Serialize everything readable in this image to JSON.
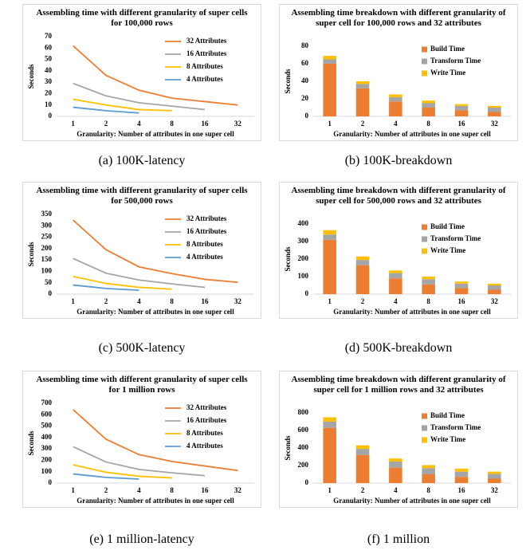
{
  "chart_data": [
    {
      "type": "line",
      "title": "Assembling time with different granularity of super cells for 100,000 rows",
      "caption": "(a)  100K-latency",
      "ylabel": "Seconds",
      "xlabel": "Granularity: Number of attributes in one super cell",
      "categories": [
        "1",
        "2",
        "4",
        "8",
        "16",
        "32"
      ],
      "ylim": [
        0,
        70
      ],
      "yticks": [
        0,
        10,
        20,
        30,
        40,
        50,
        60,
        70
      ],
      "series": [
        {
          "name": "32 Attributes",
          "color": "#ED7D31",
          "values": [
            62,
            36,
            23,
            16,
            13,
            10
          ]
        },
        {
          "name": "16 Attributes",
          "color": "#A5A5A5",
          "values": [
            29,
            18,
            12,
            9,
            6,
            null
          ]
        },
        {
          "name": "8 Attributes",
          "color": "#FFC000",
          "values": [
            15,
            10,
            6,
            5,
            null,
            null
          ]
        },
        {
          "name": "4 Attributes",
          "color": "#5B9BD5",
          "values": [
            8,
            5,
            3,
            null,
            null,
            null
          ]
        }
      ]
    },
    {
      "type": "stacked_bar",
      "title": "Assembling time breakdown with different granularity of super cell for 100,000 rows and 32 attributes",
      "caption": "(b)  100K-breakdown",
      "ylabel": "Seconds",
      "xlabel": "Granularity: Number of attributes in one super cell",
      "categories": [
        "1",
        "2",
        "4",
        "8",
        "16",
        "32"
      ],
      "ylim": [
        0,
        80
      ],
      "yticks": [
        0,
        20,
        40,
        60,
        80
      ],
      "series": [
        {
          "name": "Build Time",
          "color": "#ED7D31",
          "values": [
            60,
            32,
            17,
            10,
            7,
            5
          ]
        },
        {
          "name": "Transform Time",
          "color": "#A5A5A5",
          "values": [
            5,
            5,
            5,
            5,
            5,
            5
          ]
        },
        {
          "name": "Write Time",
          "color": "#FFC000",
          "values": [
            4,
            3,
            3,
            3,
            2,
            2
          ]
        }
      ]
    },
    {
      "type": "line",
      "title": "Assembling time with different granularity of super cells for 500,000 rows",
      "caption": "(c)  500K-latency",
      "ylabel": "Seconds",
      "xlabel": "Granularity: Number of attributes in one super cell",
      "categories": [
        "1",
        "2",
        "4",
        "8",
        "16",
        "32"
      ],
      "ylim": [
        0,
        350
      ],
      "yticks": [
        0,
        50,
        100,
        150,
        200,
        250,
        300,
        350
      ],
      "series": [
        {
          "name": "32 Attributes",
          "color": "#ED7D31",
          "values": [
            325,
            195,
            120,
            90,
            65,
            52
          ]
        },
        {
          "name": "16 Attributes",
          "color": "#A5A5A5",
          "values": [
            157,
            92,
            62,
            45,
            30,
            null
          ]
        },
        {
          "name": "8 Attributes",
          "color": "#FFC000",
          "values": [
            78,
            47,
            30,
            22,
            null,
            null
          ]
        },
        {
          "name": "4 Attributes",
          "color": "#5B9BD5",
          "values": [
            40,
            25,
            17,
            null,
            null,
            null
          ]
        }
      ]
    },
    {
      "type": "stacked_bar",
      "title": "Assembling time breakdown with different granularity of super cell for 500,000 rows and 32 attributes",
      "caption": "(d)  500K-breakdown",
      "ylabel": "Seconds",
      "xlabel": "Granularity: Number of attributes in one super cell",
      "categories": [
        "1",
        "2",
        "4",
        "8",
        "16",
        "32"
      ],
      "ylim": [
        0,
        400
      ],
      "yticks": [
        0,
        100,
        200,
        300,
        400
      ],
      "series": [
        {
          "name": "Build Time",
          "color": "#ED7D31",
          "values": [
            310,
            165,
            90,
            55,
            35,
            25
          ]
        },
        {
          "name": "Transform Time",
          "color": "#A5A5A5",
          "values": [
            30,
            30,
            30,
            30,
            25,
            25
          ]
        },
        {
          "name": "Write Time",
          "color": "#FFC000",
          "values": [
            25,
            20,
            15,
            15,
            12,
            10
          ]
        }
      ]
    },
    {
      "type": "line",
      "title": "Assembling time with different granularity of super cells for 1 million rows",
      "caption": "(e)  1 million-latency",
      "ylabel": "Seconds",
      "xlabel": "Granularity: Number of attributes in one super cell",
      "categories": [
        "1",
        "2",
        "4",
        "8",
        "16",
        "32"
      ],
      "ylim": [
        0,
        700
      ],
      "yticks": [
        0,
        100,
        200,
        300,
        400,
        500,
        600,
        700
      ],
      "series": [
        {
          "name": "32 Attributes",
          "color": "#ED7D31",
          "values": [
            645,
            385,
            250,
            190,
            150,
            110
          ]
        },
        {
          "name": "16 Attributes",
          "color": "#A5A5A5",
          "values": [
            320,
            185,
            120,
            90,
            65,
            null
          ]
        },
        {
          "name": "8 Attributes",
          "color": "#FFC000",
          "values": [
            160,
            95,
            60,
            45,
            null,
            null
          ]
        },
        {
          "name": "4 Attributes",
          "color": "#5B9BD5",
          "values": [
            80,
            50,
            35,
            null,
            null,
            null
          ]
        }
      ]
    },
    {
      "type": "stacked_bar",
      "title": "Assembling time breakdown with different granularity of super cell for 1 million rows and 32 attributes",
      "caption": "(f)  1 million",
      "ylabel": "Seconds",
      "xlabel": "Granularity: Number of attributes in one super cell",
      "categories": [
        "1",
        "2",
        "4",
        "8",
        "16",
        "32"
      ],
      "ylim": [
        0,
        800
      ],
      "yticks": [
        0,
        200,
        400,
        600,
        800
      ],
      "series": [
        {
          "name": "Build Time",
          "color": "#ED7D31",
          "values": [
            630,
            320,
            175,
            100,
            70,
            50
          ]
        },
        {
          "name": "Transform Time",
          "color": "#A5A5A5",
          "values": [
            70,
            70,
            70,
            70,
            60,
            55
          ]
        },
        {
          "name": "Write Time",
          "color": "#FFC000",
          "values": [
            50,
            40,
            35,
            35,
            35,
            25
          ]
        }
      ]
    }
  ]
}
